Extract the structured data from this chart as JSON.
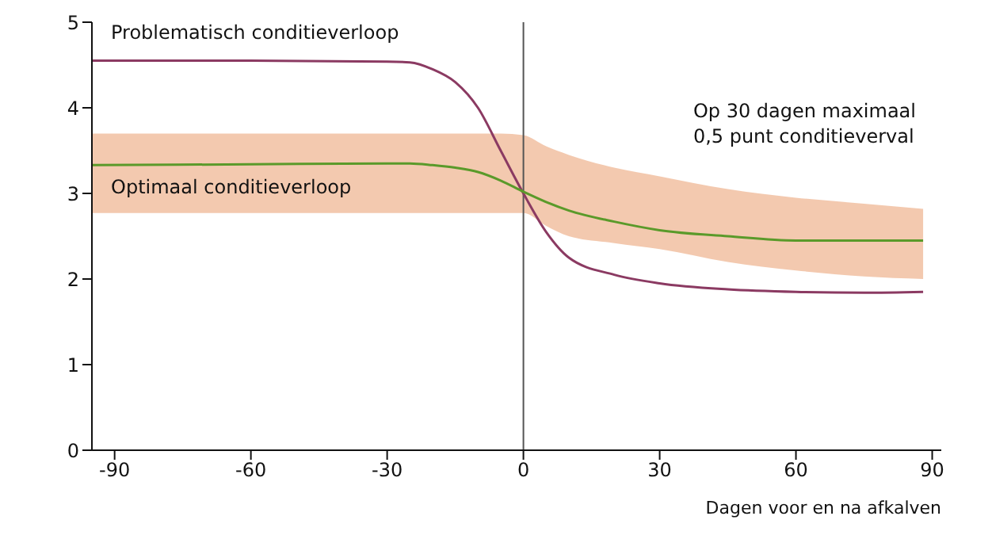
{
  "chart_data": {
    "type": "line",
    "xlabel": "Dagen voor en na afkalven",
    "x": [
      -95,
      -60,
      -30,
      -25,
      -20,
      -15,
      -10,
      -5,
      0,
      5,
      10,
      20,
      30,
      45,
      60,
      75,
      88
    ],
    "xlim": [
      -95,
      92
    ],
    "xticks": [
      -90,
      -60,
      -30,
      0,
      30,
      60,
      90
    ],
    "ylim": [
      0,
      5
    ],
    "yticks": [
      0,
      1,
      2,
      3,
      4,
      5
    ],
    "series": [
      {
        "name": "Problematisch conditieverloop",
        "color": "#8b3a62",
        "values": [
          4.55,
          4.55,
          4.54,
          4.53,
          4.45,
          4.3,
          4.0,
          3.5,
          3.0,
          2.55,
          2.25,
          2.05,
          1.95,
          1.88,
          1.85,
          1.84,
          1.85
        ]
      },
      {
        "name": "Optimaal conditieverloop",
        "color": "#5a9a2a",
        "values": [
          3.33,
          3.34,
          3.35,
          3.35,
          3.33,
          3.3,
          3.25,
          3.15,
          3.02,
          2.9,
          2.8,
          2.67,
          2.57,
          2.5,
          2.45,
          2.45,
          2.45
        ],
        "lower": [
          2.77,
          2.77,
          2.77,
          2.77,
          2.77,
          2.77,
          2.77,
          2.77,
          2.77,
          2.62,
          2.5,
          2.42,
          2.35,
          2.2,
          2.1,
          2.03,
          2.0
        ],
        "upper": [
          3.7,
          3.7,
          3.7,
          3.7,
          3.7,
          3.7,
          3.7,
          3.7,
          3.68,
          3.55,
          3.45,
          3.3,
          3.2,
          3.05,
          2.95,
          2.88,
          2.82
        ]
      }
    ],
    "ref_lines": [
      {
        "axis": "x",
        "value": 0,
        "color": "#555555"
      }
    ],
    "annotations": [
      "Op 30 dagen maximaal\n0,5 punt conditieverval"
    ],
    "grid": false,
    "legend": false,
    "marker": "none",
    "line_style": "solid"
  }
}
